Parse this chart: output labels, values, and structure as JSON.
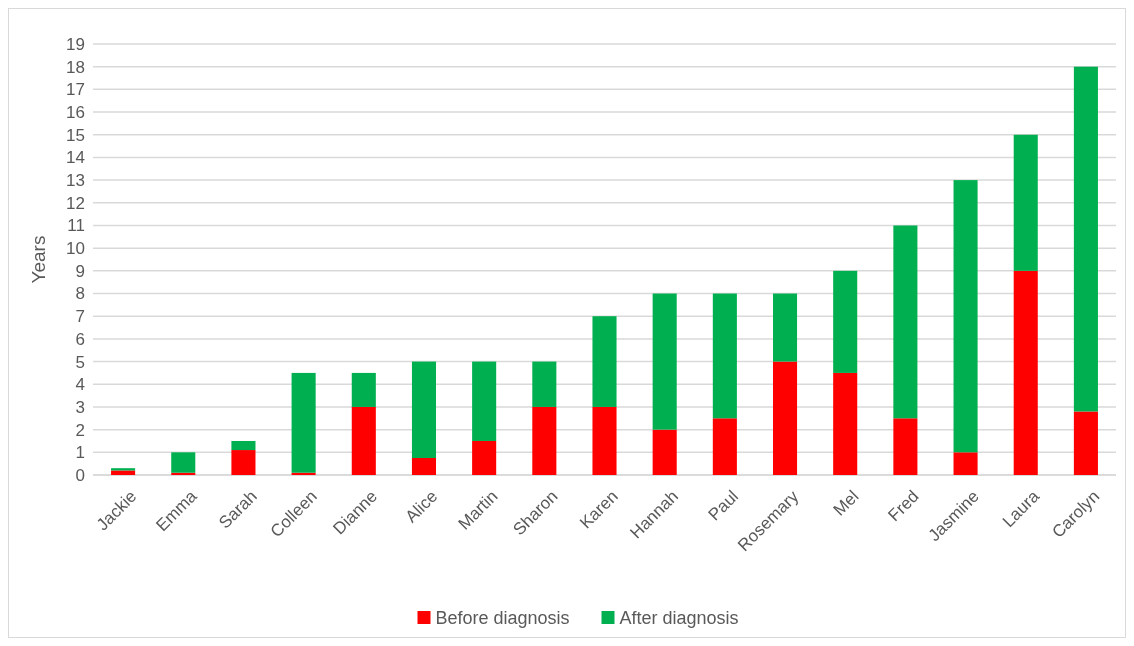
{
  "chart_data": {
    "type": "bar",
    "stacked": true,
    "ylabel": "Years",
    "categories": [
      "Jackie",
      "Emma",
      "Sarah",
      "Colleen",
      "Dianne",
      "Alice",
      "Martin",
      "Sharon",
      "Karen",
      "Hannah",
      "Paul",
      "Rosemary",
      "Mel",
      "Fred",
      "Jasmine",
      "Laura",
      "Carolyn"
    ],
    "series": [
      {
        "name": "Before diagnosis",
        "color": "#ff0000",
        "values": [
          0.2,
          0.1,
          1.1,
          0.1,
          3,
          0.75,
          1.5,
          3,
          3,
          2,
          2.5,
          5,
          4.5,
          2.5,
          1,
          9,
          2.8
        ]
      },
      {
        "name": "After diagnosis",
        "color": "#00b050",
        "values": [
          0.1,
          0.9,
          0.4,
          4.4,
          1.5,
          4.25,
          3.5,
          2,
          4,
          6,
          5.5,
          3,
          4.5,
          8.5,
          12,
          6,
          15.2
        ]
      }
    ],
    "ylim": [
      0,
      19
    ],
    "yticks": [
      0,
      1,
      2,
      3,
      4,
      5,
      6,
      7,
      8,
      9,
      10,
      11,
      12,
      13,
      14,
      15,
      16,
      17,
      18,
      19
    ],
    "grid": "y",
    "legend": "bottom"
  }
}
